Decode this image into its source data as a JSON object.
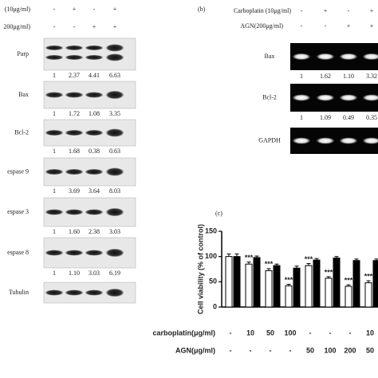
{
  "panel_a": {
    "header_rows": [
      {
        "label": "(10μg/ml)",
        "marks": [
          "-",
          "+",
          "-",
          "+"
        ]
      },
      {
        "label": "200μg/ml)",
        "marks": [
          "-",
          "-",
          "+",
          "+"
        ]
      }
    ],
    "blots": [
      {
        "label": "Parp",
        "values": [
          "1",
          "2.37",
          "4.41",
          "6.63"
        ]
      },
      {
        "label": "Bax",
        "values": [
          "1",
          "1.72",
          "1.08",
          "3.35"
        ]
      },
      {
        "label": "Bcl-2",
        "values": [
          "1",
          "1.68",
          "0.38",
          "0.63"
        ]
      },
      {
        "label": "espase 9",
        "values": [
          "1",
          "3.69",
          "3.64",
          "8.03"
        ]
      },
      {
        "label": "espase 3",
        "values": [
          "1",
          "1.60",
          "2.38",
          "3.03"
        ]
      },
      {
        "label": "espase 8",
        "values": [
          "1",
          "1.10",
          "3.03",
          "6.19"
        ]
      },
      {
        "label": "Tubulin"
      }
    ]
  },
  "panel_b": {
    "letter": "(b)",
    "header_rows": [
      {
        "label": "Carboplatin (10μg/ml)",
        "marks": [
          "-",
          "+",
          "-",
          "+"
        ]
      },
      {
        "label": "AGN(200μg/ml)",
        "marks": [
          "-",
          "-",
          "+",
          "+"
        ]
      }
    ],
    "blots": [
      {
        "label": "Bax",
        "values": [
          "1",
          "1.62",
          "1.10",
          "3.32"
        ]
      },
      {
        "label": "Bcl-2",
        "values": [
          "1",
          "1.09",
          "0.49",
          "0.35"
        ]
      },
      {
        "label": "GAPDH"
      }
    ]
  },
  "chart_data": {
    "type": "bar",
    "letter": "(c)",
    "y_label": "Cell viability (% of control)",
    "ylim": [
      0,
      150
    ],
    "yticks": [
      0,
      50,
      100,
      150
    ],
    "row_labels": [
      "carboplatin(μg/ml)",
      "AGN(μg/ml)"
    ],
    "carboplatin": [
      "-",
      "10",
      "50",
      "100",
      "-",
      "-",
      "-",
      "10"
    ],
    "agn": [
      "-",
      "-",
      "-",
      "-",
      "50",
      "100",
      "200",
      "50"
    ],
    "series": [
      {
        "color": "#ffffff",
        "values": [
          100,
          85,
          72,
          42,
          82,
          57,
          41,
          48
        ],
        "errors": [
          5,
          4,
          4,
          3,
          4,
          3,
          3,
          4
        ],
        "significance": [
          null,
          "***",
          "***",
          "***",
          "***",
          "***",
          "***",
          "***"
        ]
      },
      {
        "color": "#000000",
        "values": [
          100,
          98,
          82,
          77,
          93,
          97,
          92,
          92
        ],
        "errors": [
          5,
          3,
          3,
          4,
          3,
          3,
          3,
          3
        ]
      }
    ]
  }
}
